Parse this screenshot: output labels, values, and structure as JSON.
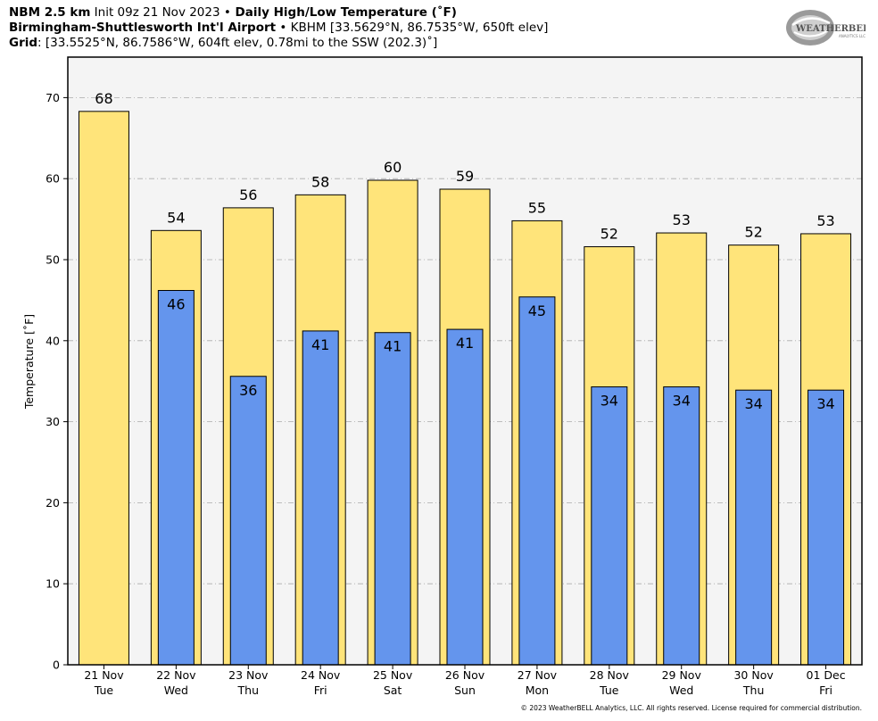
{
  "header": {
    "line1": {
      "model": "NBM 2.5 km",
      "init": " Init 09z 21 Nov 2023 ",
      "sep": "•",
      "product": " Daily High/Low Temperature (˚F)"
    },
    "line2": {
      "station": "Birmingham-Shuttlesworth Int'l Airport",
      "sep": " • ",
      "details": "KBHM [33.5629°N, 86.7535°W, 650ft elev]"
    },
    "line3": {
      "label": "Grid",
      "details": ": [33.5525°N, 86.7586°W, 604ft elev, 0.78mi to the SSW (202.3)˚]"
    }
  },
  "logo": {
    "text": "WeatherBELL",
    "sub": "Analytics LLC"
  },
  "footer": "© 2023 WeatherBELL Analytics, LLC. All rights reserved. License required for commercial distribution.",
  "colors": {
    "high_bar": "#FFE47A",
    "low_bar": "#6495ED",
    "plot_bg": "#F4F4F4",
    "grid": "#AAAAAA"
  },
  "chart_data": {
    "type": "bar",
    "ylabel": "Temperature [˚F]",
    "ylim": [
      0,
      75
    ],
    "yticks": [
      0,
      10,
      20,
      30,
      40,
      50,
      60,
      70
    ],
    "grid": true,
    "categories": [
      {
        "date": "21 Nov",
        "day": "Tue"
      },
      {
        "date": "22 Nov",
        "day": "Wed"
      },
      {
        "date": "23 Nov",
        "day": "Thu"
      },
      {
        "date": "24 Nov",
        "day": "Fri"
      },
      {
        "date": "25 Nov",
        "day": "Sat"
      },
      {
        "date": "26 Nov",
        "day": "Sun"
      },
      {
        "date": "27 Nov",
        "day": "Mon"
      },
      {
        "date": "28 Nov",
        "day": "Tue"
      },
      {
        "date": "29 Nov",
        "day": "Wed"
      },
      {
        "date": "30 Nov",
        "day": "Thu"
      },
      {
        "date": "01 Dec",
        "day": "Fri"
      }
    ],
    "series": [
      {
        "key": "high",
        "values": [
          68.3,
          53.6,
          56.4,
          58.0,
          59.8,
          58.7,
          54.8,
          51.6,
          53.3,
          51.8,
          53.2
        ],
        "labels": [
          "68",
          "54",
          "56",
          "58",
          "60",
          "59",
          "55",
          "52",
          "53",
          "52",
          "53"
        ]
      },
      {
        "key": "low",
        "values": [
          null,
          46.2,
          35.6,
          41.2,
          41.0,
          41.4,
          45.4,
          34.3,
          34.3,
          33.9,
          33.9
        ],
        "labels": [
          "",
          "46",
          "36",
          "41",
          "41",
          "41",
          "45",
          "34",
          "34",
          "34",
          "34"
        ]
      }
    ]
  }
}
